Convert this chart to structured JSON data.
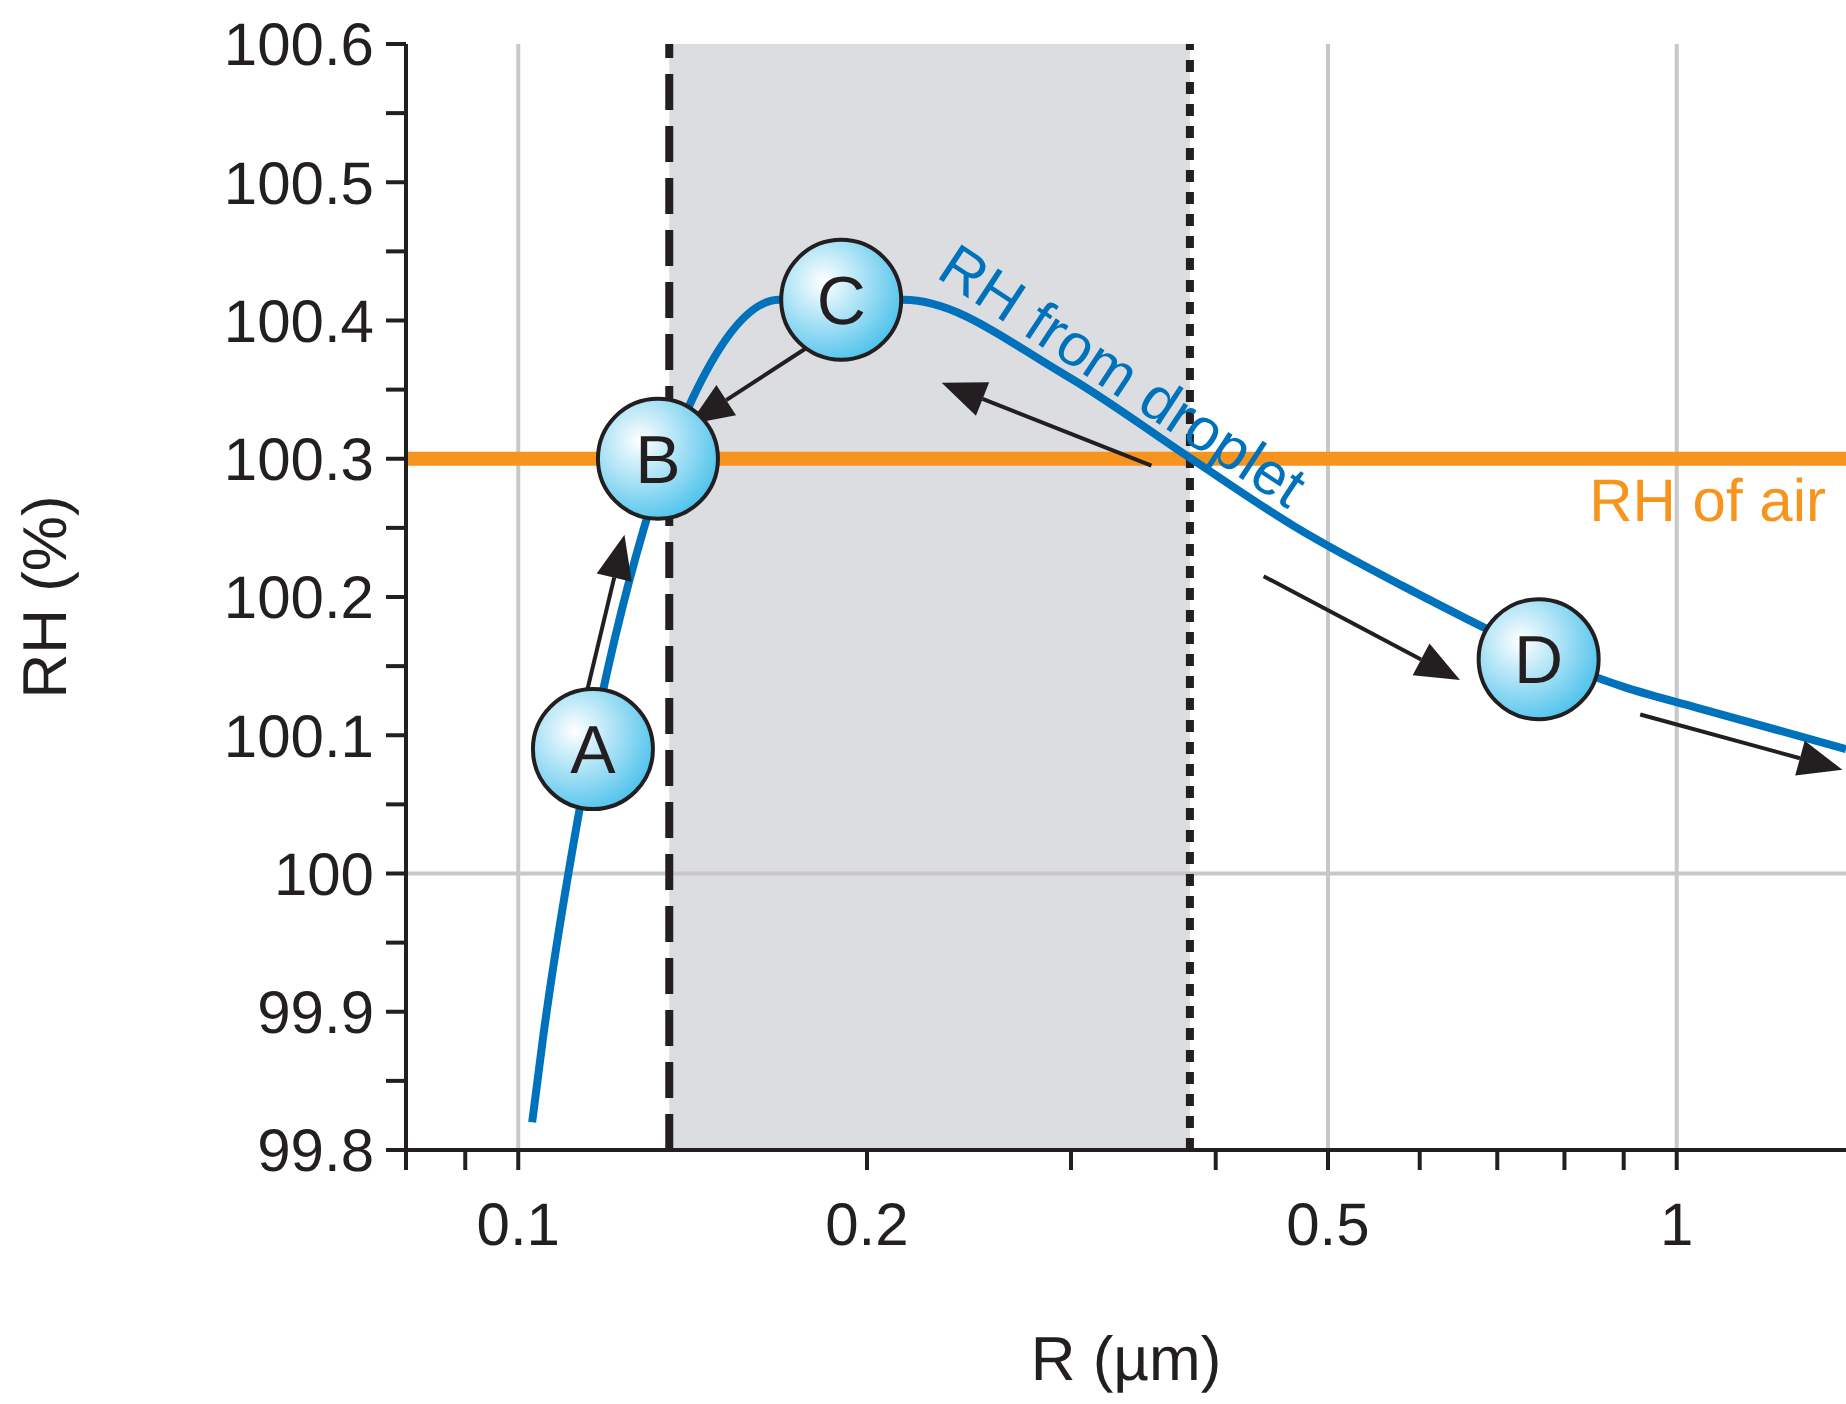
{
  "chart_data": {
    "type": "line",
    "xlabel": "R (µm)",
    "ylabel": "RH (%)",
    "log": "x",
    "grid": "x",
    "marker": "none",
    "line_style": "solid",
    "xlim": [
      0.08,
      1.4
    ],
    "ylim": [
      99.8,
      100.6
    ],
    "xticks": [
      {
        "value": 0.08,
        "label": null
      },
      {
        "value": 0.09,
        "label": null
      },
      0.1,
      0.2,
      {
        "value": 0.3,
        "label": null
      },
      {
        "value": 0.4,
        "label": null
      },
      0.5,
      {
        "value": 0.6,
        "label": null
      },
      {
        "value": 0.7,
        "label": null
      },
      {
        "value": 0.8,
        "label": null
      },
      {
        "value": 0.9,
        "label": null
      },
      1
    ],
    "yticks": [
      99.8,
      {
        "value": 99.85,
        "label": null
      },
      99.9,
      {
        "value": 99.95,
        "label": null
      },
      100,
      {
        "value": 100.05,
        "label": null
      },
      100.1,
      {
        "value": 100.15,
        "label": null
      },
      100.2,
      {
        "value": 100.25,
        "label": null
      },
      100.3,
      {
        "value": 100.35,
        "label": null
      },
      100.4,
      {
        "value": 100.45,
        "label": null
      },
      100.5,
      {
        "value": 100.55,
        "label": null
      },
      100.6
    ],
    "series": [
      {
        "name": "RH from droplet",
        "color": "#0072bc",
        "x": [
          0.1028,
          0.105,
          0.1126,
          0.1284,
          0.1413,
          0.168,
          0.215,
          0.296,
          0.381,
          0.47,
          0.574,
          0.9,
          1.04,
          1.4
        ],
        "values": [
          99.82,
          99.88,
          100.04,
          100.25,
          100.343,
          100.415,
          100.415,
          100.361,
          100.3,
          100.25,
          100.21,
          100.135,
          100.12,
          100.09
        ]
      }
    ],
    "bands": [
      {
        "axis": "x",
        "from": 0.135,
        "to": 0.38,
        "color": "#dcdde1"
      }
    ],
    "ref_lines": [
      {
        "axis": "y",
        "value": 100,
        "color": "#c8c8c8",
        "line_style": "solid"
      },
      {
        "axis": "y",
        "value": 100.3,
        "label": "RH of air",
        "color": "#f7941d",
        "line_style": "solid"
      },
      {
        "axis": "x",
        "value": 0.135,
        "color": "#231f20",
        "line_style": "dashed"
      },
      {
        "axis": "x",
        "value": 0.38,
        "color": "#231f20",
        "line_style": "dotted"
      }
    ],
    "annotations": [
      {
        "text": "A",
        "x": 0.116,
        "y": 100.09
      },
      {
        "text": "B",
        "x": 0.132,
        "y": 100.3
      },
      {
        "text": "C",
        "x": 0.19,
        "y": 100.415
      },
      {
        "text": "D",
        "x": 0.76,
        "y": 100.155
      }
    ]
  }
}
